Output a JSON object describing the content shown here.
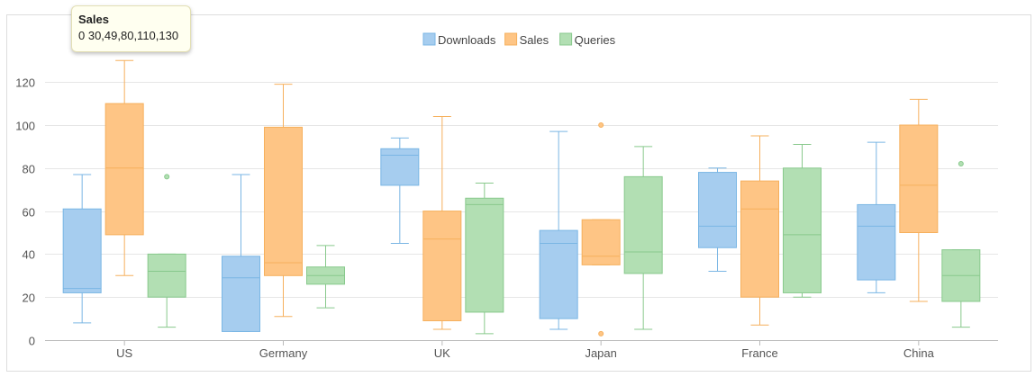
{
  "chart_data": {
    "type": "boxplot",
    "categories": [
      "US",
      "Germany",
      "UK",
      "Japan",
      "France",
      "China"
    ],
    "ylim": [
      0,
      130
    ],
    "yticks": [
      0,
      20,
      40,
      60,
      80,
      100,
      120
    ],
    "grid": true,
    "legend_position": "top-center",
    "series": [
      {
        "name": "Downloads",
        "color": "#a6cdef",
        "stroke": "#7ab6e4",
        "boxes": [
          {
            "min": 8,
            "q1": 22,
            "median": 24,
            "q3": 61,
            "max": 77,
            "outliers": []
          },
          {
            "min": 4,
            "q1": 4,
            "median": 29,
            "q3": 39,
            "max": 77,
            "outliers": []
          },
          {
            "min": 45,
            "q1": 72,
            "median": 86,
            "q3": 89,
            "max": 94,
            "outliers": []
          },
          {
            "min": 5,
            "q1": 10,
            "median": 45,
            "q3": 51,
            "max": 97,
            "outliers": []
          },
          {
            "min": 32,
            "q1": 43,
            "median": 53,
            "q3": 78,
            "max": 80,
            "outliers": []
          },
          {
            "min": 22,
            "q1": 28,
            "median": 53,
            "q3": 63,
            "max": 92,
            "outliers": []
          }
        ]
      },
      {
        "name": "Sales",
        "color": "#fec585",
        "stroke": "#f6b05d",
        "boxes": [
          {
            "min": 30,
            "q1": 49,
            "median": 80,
            "q3": 110,
            "max": 130,
            "outliers": []
          },
          {
            "min": 11,
            "q1": 30,
            "median": 36,
            "q3": 99,
            "max": 119,
            "outliers": []
          },
          {
            "min": 5,
            "q1": 9,
            "median": 47,
            "q3": 60,
            "max": 104,
            "outliers": []
          },
          {
            "min": 35,
            "q1": 35,
            "median": 39,
            "q3": 56,
            "max": 56,
            "outliers": [
              100,
              3
            ]
          },
          {
            "min": 7,
            "q1": 20,
            "median": 61,
            "q3": 74,
            "max": 95,
            "outliers": []
          },
          {
            "min": 18,
            "q1": 50,
            "median": 72,
            "q3": 100,
            "max": 112,
            "outliers": []
          }
        ]
      },
      {
        "name": "Queries",
        "color": "#b2dfb3",
        "stroke": "#88c98c",
        "boxes": [
          {
            "min": 6,
            "q1": 20,
            "median": 32,
            "q3": 40,
            "max": 40,
            "outliers": [
              76
            ]
          },
          {
            "min": 15,
            "q1": 26,
            "median": 30,
            "q3": 34,
            "max": 44,
            "outliers": []
          },
          {
            "min": 3,
            "q1": 13,
            "median": 63,
            "q3": 66,
            "max": 73,
            "outliers": []
          },
          {
            "min": 5,
            "q1": 31,
            "median": 41,
            "q3": 76,
            "max": 90,
            "outliers": []
          },
          {
            "min": 20,
            "q1": 22,
            "median": 49,
            "q3": 80,
            "max": 91,
            "outliers": []
          },
          {
            "min": 6,
            "q1": 18,
            "median": 30,
            "q3": 42,
            "max": 42,
            "outliers": [
              82
            ]
          }
        ]
      }
    ]
  },
  "tooltip": {
    "title": "Sales",
    "body": "0 30,49,80,110,130"
  }
}
